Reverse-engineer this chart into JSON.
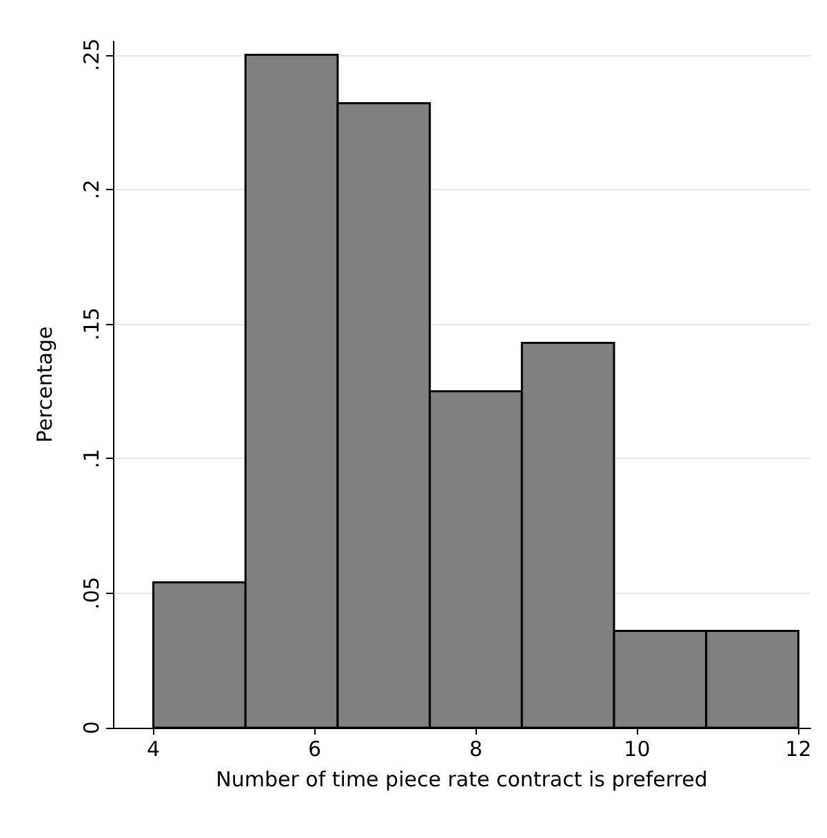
{
  "chart_data": {
    "type": "histogram",
    "xlabel": "Number of time piece rate contract is preferred",
    "ylabel": "Percentage",
    "bins": [
      4,
      5.143,
      6.286,
      7.429,
      8.571,
      9.714,
      10.857,
      12
    ],
    "values": [
      0.054,
      0.25,
      0.232,
      0.125,
      0.143,
      0.036,
      0.036
    ],
    "color": "#808080",
    "xlim": [
      3.5,
      12.15
    ],
    "xticks": [
      4,
      6,
      8,
      10,
      12
    ],
    "ylim": [
      0,
      0.255
    ],
    "yticks": [
      0,
      {
        "value": 0.05,
        "label": ".05"
      },
      {
        "value": 0.1,
        "label": ".1"
      },
      {
        "value": 0.15,
        "label": ".15"
      },
      {
        "value": 0.2,
        "label": ".2"
      },
      {
        "value": 0.25,
        "label": ".25"
      }
    ],
    "grid": "y"
  }
}
